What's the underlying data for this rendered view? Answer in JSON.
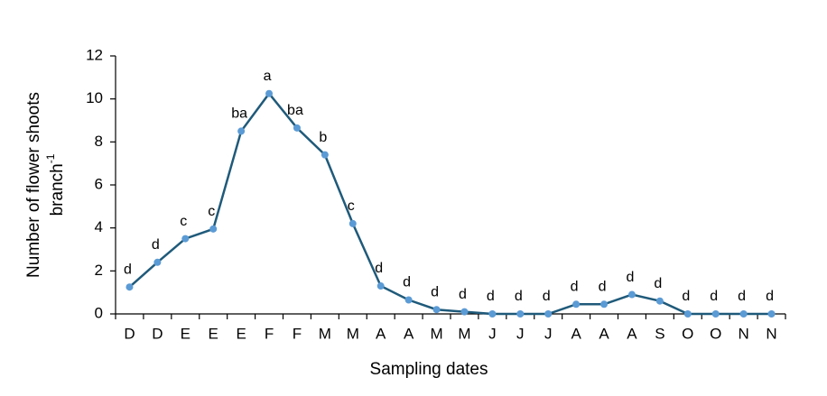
{
  "chart_data": {
    "type": "line",
    "xlabel": "Sampling dates",
    "ylabel": [
      "Number of flower shoots",
      "branch"
    ],
    "ylabel_superscript": "-1",
    "categories": [
      "D",
      "D",
      "E",
      "E",
      "E",
      "F",
      "F",
      "M",
      "M",
      "A",
      "A",
      "M",
      "M",
      "J",
      "J",
      "J",
      "A",
      "A",
      "A",
      "S",
      "O",
      "O",
      "N",
      "N"
    ],
    "series": [
      {
        "color": "#1f5a7a",
        "marker_color": "#5b9bd5",
        "values": [
          1.25,
          2.4,
          3.5,
          3.95,
          8.5,
          10.25,
          8.65,
          7.4,
          4.2,
          1.3,
          0.65,
          0.2,
          0.1,
          0,
          0,
          0,
          0.45,
          0.45,
          0.9,
          0.6,
          0,
          0,
          0,
          0
        ],
        "point_labels": [
          "d",
          "d",
          "c",
          "c",
          "ba",
          "a",
          "ba",
          "b",
          "c",
          "d",
          "d",
          "d",
          "d",
          "d",
          "d",
          "d",
          "d",
          "d",
          "d",
          "d",
          "d",
          "d",
          "d",
          "d"
        ]
      }
    ],
    "ylim": [
      0,
      12
    ],
    "yticks": [
      0,
      2,
      4,
      6,
      8,
      10,
      12
    ],
    "grid": false
  }
}
